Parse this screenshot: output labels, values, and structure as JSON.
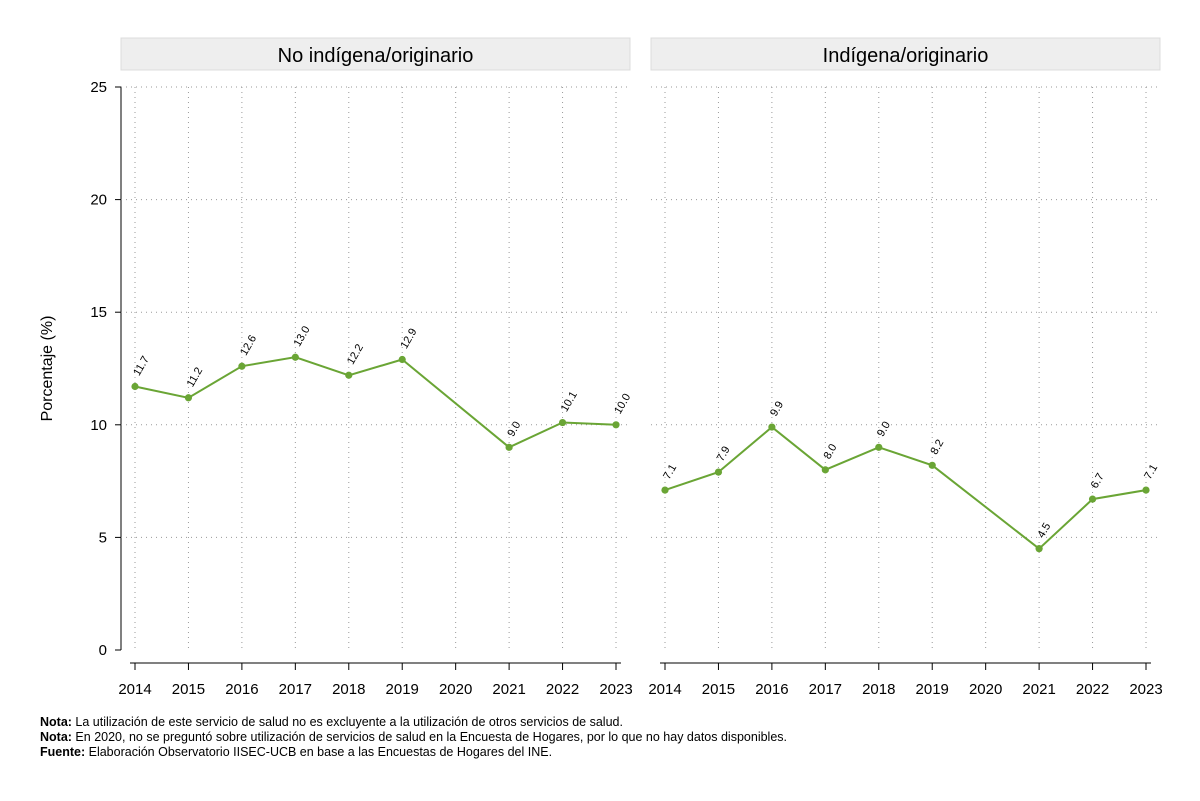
{
  "chart_data": {
    "type": "line",
    "ylabel": "Porcentaje (%)",
    "ylim": [
      0,
      25
    ],
    "yticks": [
      0,
      5,
      10,
      15,
      20,
      25
    ],
    "x": [
      2014,
      2015,
      2016,
      2017,
      2018,
      2019,
      2020,
      2021,
      2022,
      2023
    ],
    "grid": true,
    "line_color": "#6aa535",
    "panels": [
      {
        "title": "No indígena/originario",
        "values": [
          11.7,
          11.2,
          12.6,
          13.0,
          12.2,
          12.9,
          null,
          9.0,
          10.1,
          10.0
        ],
        "labels": [
          "11.7",
          "11.2",
          "12.6",
          "13.0",
          "12.2",
          "12.9",
          null,
          "9.0",
          "10.1",
          "10.0"
        ]
      },
      {
        "title": "Indígena/originario",
        "values": [
          7.1,
          7.9,
          9.9,
          8.0,
          9.0,
          8.2,
          null,
          4.5,
          6.7,
          7.1
        ],
        "labels": [
          "7.1",
          "7.9",
          "9.9",
          "8.0",
          "9.0",
          "8.2",
          null,
          "4.5",
          "6.7",
          "7.1"
        ]
      }
    ]
  },
  "notes": [
    {
      "label": "Nota:",
      "text": " La utilización de este servicio de salud no es excluyente a la utilización de otros servicios de salud."
    },
    {
      "label": "Nota:",
      "text": " En 2020, no se preguntó sobre utilización de servicios de salud en la Encuesta de Hogares, por lo que no hay datos disponibles."
    },
    {
      "label": "Fuente:",
      "text": " Elaboración Observatorio IISEC-UCB en base a las Encuestas de Hogares del INE."
    }
  ]
}
